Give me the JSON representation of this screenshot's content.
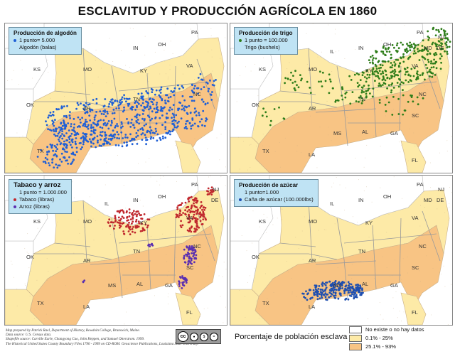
{
  "title": "ESCLAVITUD Y PRODUCCIÓN AGRÍCOLA EN 1860",
  "colors": {
    "none": "#ffffff",
    "low": "#fdeaa7",
    "high": "#f8c484",
    "border": "#bfa88a"
  },
  "panels": [
    {
      "id": "cotton",
      "legend_title": "Producción de algodón",
      "legend_rows": [
        {
          "text": "1 punto= 5.000",
          "dot": "#1f5fd6"
        },
        {
          "text": "Algodón (balas)",
          "dot": null
        }
      ],
      "dot_color": "#1f5fd6",
      "states": [
        "MO",
        "KY",
        "VA",
        "NC",
        "TN",
        "AR",
        "OK",
        "TX",
        "KS",
        "IN",
        "OH",
        "PA"
      ]
    },
    {
      "id": "wheat",
      "legend_title": "Producción de trigo",
      "legend_rows": [
        {
          "text": "1 punto = 100.000",
          "dot": "#2e7d1a"
        },
        {
          "text": "Trigo (bushels)",
          "dot": null
        }
      ],
      "dot_color": "#2e7d1a",
      "states": [
        "IL",
        "IN",
        "OH",
        "PA",
        "NJ",
        "DE",
        "MD",
        "MO",
        "KS",
        "KY",
        "VA",
        "TN",
        "NC",
        "OK",
        "AR",
        "SC",
        "MS",
        "AL",
        "GA",
        "TX",
        "LA",
        "FL"
      ]
    },
    {
      "id": "tobacco",
      "legend_title": "Tabaco y arroz",
      "legend_rows": [
        {
          "text": "1 punto = 1.000.000",
          "dot": null
        },
        {
          "text": "Tabaco (libras)",
          "dot": "#c0272d"
        },
        {
          "text": "Arroz (libras)",
          "dot": "#5b2fb0"
        }
      ],
      "dot_color": "#c0272d",
      "dot_color2": "#5b2fb0",
      "states": [
        "PA",
        "NJ",
        "DE",
        "IL",
        "IN",
        "OH",
        "MO",
        "KS",
        "KY",
        "VA",
        "NC",
        "OK",
        "AR",
        "TN",
        "SC",
        "MS",
        "AL",
        "GA",
        "TX",
        "LA",
        "FL"
      ]
    },
    {
      "id": "sugar",
      "legend_title": "Producción de azúcar",
      "legend_rows": [
        {
          "text": "1 punto=1.000",
          "dot": null
        },
        {
          "text": "Caña de azúcar (100.000lbs)",
          "dot": "#1f4fb0"
        }
      ],
      "dot_color": "#1f4fb0",
      "states": [
        "PA",
        "NJ",
        "DE",
        "MD",
        "IL",
        "IN",
        "OH",
        "MO",
        "KS",
        "KY",
        "VA",
        "OK",
        "TN",
        "NC",
        "AR",
        "SC",
        "MS",
        "AL",
        "GA",
        "TX",
        "LA",
        "FL"
      ]
    }
  ],
  "credits": [
    "Map prepared by Patrick Rael, Department of History, Bowdoin College, Brunswick, Maine.",
    "Data source: U.S. Census data.",
    "Shapefile source: Carville Earle, Changyong Cao, John Heppen, and Samuel Otterstrom. 1999.",
    "The Historical United States County Boundary Files 1790 - 1999 on CD-ROM. Geoscience Publications, Louisiana State University."
  ],
  "cc_text": "BY NC ND",
  "legend_title": "Porcentaje de población esclava",
  "legend_items": [
    {
      "label": "No existe o no hay datos",
      "color": "#ffffff"
    },
    {
      "label": "0.1% - 25%",
      "color": "#fdeaa7"
    },
    {
      "label": "25.1% - 93%",
      "color": "#f8c484"
    }
  ]
}
